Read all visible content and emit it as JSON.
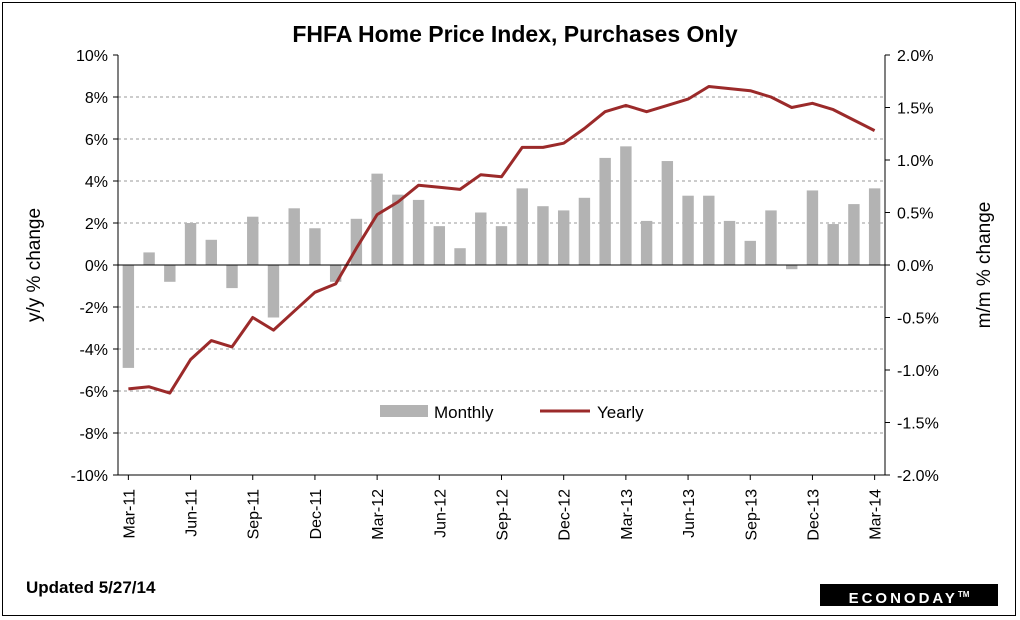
{
  "chart_data": {
    "type": "bar+line",
    "title": "FHFA Home Price Index, Purchases  Only",
    "y_left_label": "y/y  % change",
    "y_right_label": "m/m % change",
    "y_left_ticks": [
      "10%",
      "8%",
      "6%",
      "4%",
      "2%",
      "0%",
      "-2%",
      "-4%",
      "-6%",
      "-8%",
      "-10%"
    ],
    "y_right_ticks": [
      "2.0%",
      "1.5%",
      "1.0%",
      "0.5%",
      "0.0%",
      "-0.5%",
      "-1.0%",
      "-1.5%",
      "-2.0%"
    ],
    "y_left_range": [
      -10,
      10
    ],
    "y_right_range": [
      -2.0,
      2.0
    ],
    "x_tick_labels": [
      "Mar-11",
      "Jun-11",
      "Sep-11",
      "Dec-11",
      "Mar-12",
      "Jun-12",
      "Sep-12",
      "Dec-12",
      "Mar-13",
      "Jun-13",
      "Sep-13",
      "Dec-13",
      "Mar-14"
    ],
    "months": [
      "Mar-11",
      "Apr-11",
      "May-11",
      "Jun-11",
      "Jul-11",
      "Aug-11",
      "Sep-11",
      "Oct-11",
      "Nov-11",
      "Dec-11",
      "Jan-12",
      "Feb-12",
      "Mar-12",
      "Apr-12",
      "May-12",
      "Jun-12",
      "Jul-12",
      "Aug-12",
      "Sep-12",
      "Oct-12",
      "Nov-12",
      "Dec-12",
      "Jan-13",
      "Feb-13",
      "Mar-13",
      "Apr-13",
      "May-13",
      "Jun-13",
      "Jul-13",
      "Aug-13",
      "Sep-13",
      "Oct-13",
      "Nov-13",
      "Dec-13",
      "Jan-14",
      "Feb-14",
      "Mar-14"
    ],
    "series": [
      {
        "name": "Monthly",
        "axis": "right",
        "kind": "bar",
        "color": "#b3b3b3",
        "values": [
          -0.98,
          0.12,
          -0.16,
          0.4,
          0.24,
          -0.22,
          0.46,
          -0.5,
          0.54,
          0.35,
          -0.16,
          0.44,
          0.87,
          0.67,
          0.62,
          0.37,
          0.16,
          0.5,
          0.37,
          0.73,
          0.56,
          0.52,
          0.64,
          1.02,
          1.13,
          0.42,
          0.99,
          0.66,
          0.66,
          0.42,
          0.23,
          0.52,
          -0.04,
          0.71,
          0.39,
          0.58,
          0.73
        ]
      },
      {
        "name": "Yearly",
        "axis": "left",
        "kind": "line",
        "color": "#9b2a2a",
        "values": [
          -5.9,
          -5.8,
          -6.1,
          -4.5,
          -3.6,
          -3.9,
          -2.5,
          -3.1,
          -2.2,
          -1.3,
          -0.9,
          0.8,
          2.4,
          3.0,
          3.8,
          3.7,
          3.6,
          4.3,
          4.2,
          5.6,
          5.6,
          5.8,
          6.5,
          7.3,
          7.6,
          7.3,
          7.6,
          7.9,
          8.5,
          8.4,
          8.3,
          8.0,
          7.5,
          7.7,
          7.4,
          6.9,
          6.4
        ]
      }
    ],
    "legend_position": "inside-bottom-center",
    "grid": true
  },
  "footer": {
    "updated": "Updated 5/27/14",
    "brand": "ECONODAY",
    "brand_mark": "TM"
  }
}
